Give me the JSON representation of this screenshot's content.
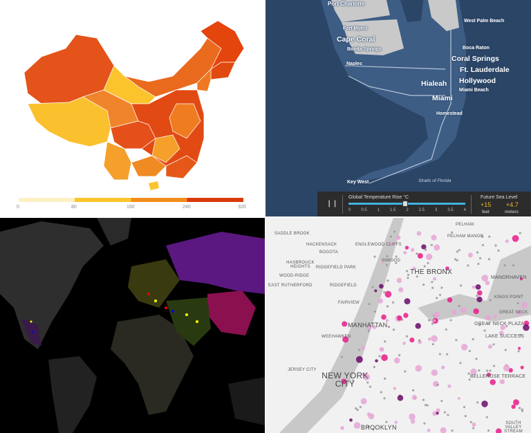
{
  "china_map": {
    "legend": {
      "ticks": [
        "0",
        "80",
        "160",
        "240",
        "320"
      ],
      "colors": [
        "#fdf1c4",
        "#fbc52d",
        "#f28c1c",
        "#e5531a",
        "#d93b0c"
      ]
    }
  },
  "florida_map": {
    "cities": [
      "Port Charlotte",
      "Fort Myers",
      "Cape Coral",
      "Bonita Springs",
      "Naples",
      "West Palm Beach",
      "Boca Raton",
      "Coral Springs",
      "Ft. Lauderdale",
      "Hollywood",
      "Hialeah",
      "Miami Beach",
      "Miami",
      "Homestead",
      "Key West"
    ],
    "water_label": "Straits of Florida",
    "controls": {
      "pause_icon": "pause-icon",
      "slider_title": "Global Temperature Rise °C",
      "slider_ticks": [
        "0",
        "0.5",
        "1",
        "1.5",
        "2",
        "2.5",
        "3",
        "3.5",
        "4"
      ],
      "slider_value": 2,
      "sea_level_title": "Future Sea Level",
      "feet_value": "+15",
      "feet_unit": "feet",
      "meters_value": "+4.7",
      "meters_unit": "meters",
      "accent": "#e8b730"
    }
  },
  "world_map": {
    "background": "#000000"
  },
  "nyc_map": {
    "places": [
      "PELHAM",
      "SADDLE BROOK",
      "PELHAM MANOR",
      "HACKENSACK",
      "ENGLEWOOD CLIFFS",
      "BOGOTA",
      "INWOOD",
      "HASBROUCK HEIGHTS",
      "RIDGEFIELD PARK",
      "THE BRONX",
      "WOOD-RIDGE",
      "MANORHAVEN",
      "EAST RUTHERFORD",
      "RIDGEFIELD",
      "KINGS POINT",
      "FAIRVIEW",
      "GREAT NECK",
      "GREAT NECK PLAZA",
      "MANHATTAN",
      "WEEHAWKEN",
      "LAKE SUCCESS",
      "JERSEY CITY",
      "NEW YORK CITY",
      "BELLEROSE TERRACE",
      "SOUTH VALLEY STREAM",
      "BROOKLYN"
    ],
    "dot_colors": [
      "#e5a6d6",
      "#e81c8a",
      "#6b0a6b",
      "#999999"
    ]
  }
}
